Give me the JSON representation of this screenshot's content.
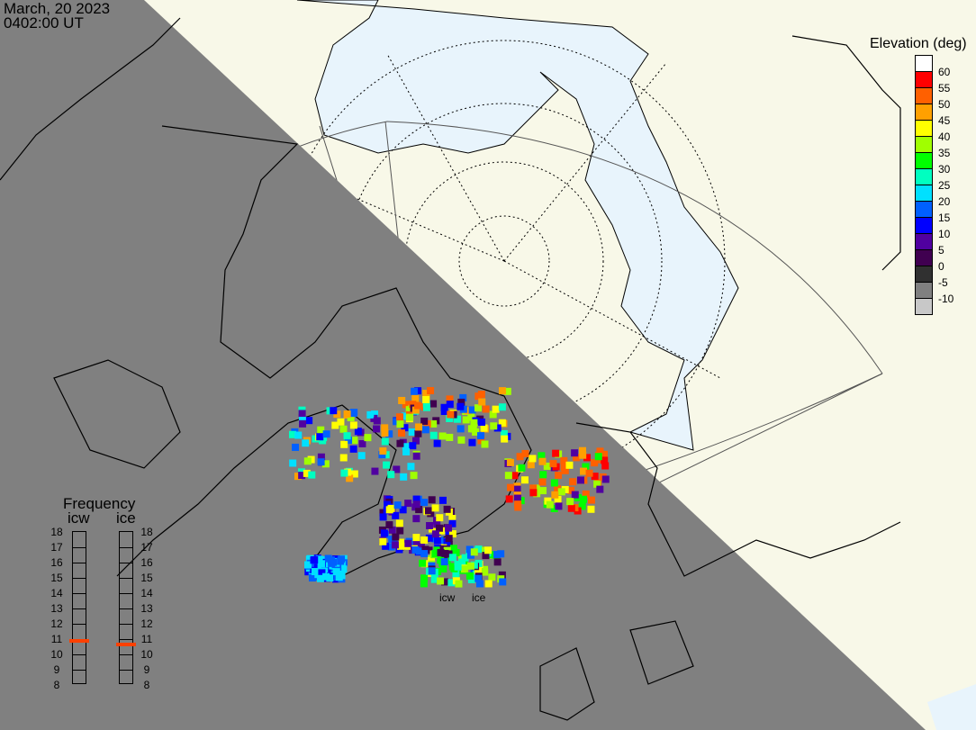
{
  "header": {
    "date": "March, 20 2023",
    "time": "0402:00 UT"
  },
  "legend": {
    "title": "Elevation (deg)",
    "labels": [
      "60",
      "55",
      "50",
      "45",
      "40",
      "35",
      "30",
      "25",
      "20",
      "15",
      "10",
      "5",
      "0",
      "-5",
      "-10"
    ],
    "colors": [
      "#ffffff",
      "#ff0000",
      "#ff6000",
      "#ffa000",
      "#ffff00",
      "#a0ff00",
      "#00ff00",
      "#00ffc0",
      "#00e0ff",
      "#0060ff",
      "#0000ff",
      "#5000a0",
      "#400050",
      "#303030",
      "#808080",
      "#c8c8c8"
    ]
  },
  "frequency": {
    "title": "Frequency",
    "ticks": [
      "18",
      "17",
      "16",
      "15",
      "14",
      "13",
      "12",
      "11",
      "10",
      "9",
      "8"
    ],
    "radars": [
      {
        "name": "icw",
        "value_mhz": 10.8,
        "marker_color": "#ff4000"
      },
      {
        "name": "ice",
        "value_mhz": 10.6,
        "marker_color": "#ff4000"
      }
    ]
  },
  "radar_labels": [
    "icw",
    "ice"
  ],
  "map_colors": {
    "land": "#f8f8e8",
    "ocean": "#e8f4fc",
    "night": "#808080"
  }
}
